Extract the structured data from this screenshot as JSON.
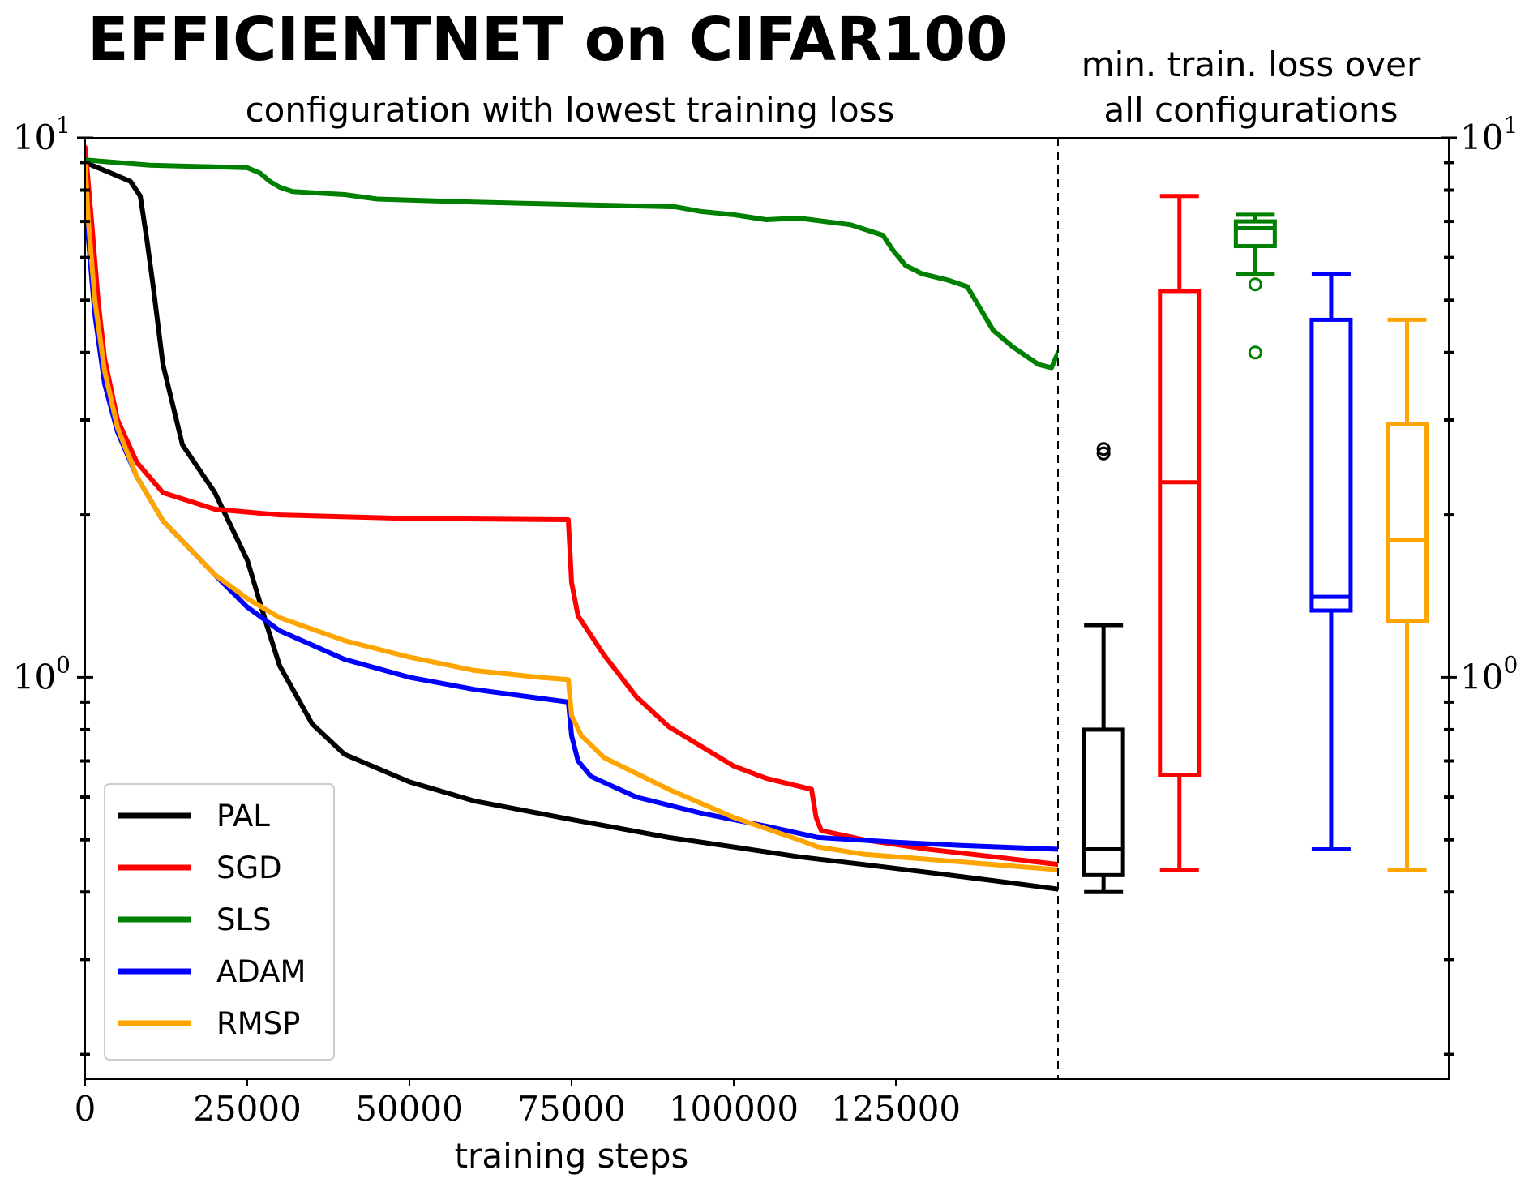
{
  "chart_data": [
    {
      "type": "line",
      "title": "EFFICIENTNET on CIFAR100",
      "subtitle": "configuration with lowest training loss",
      "xlabel": "training steps",
      "ylabel": "",
      "xlim": [
        0,
        150000
      ],
      "ylim": [
        0.18,
        10
      ],
      "yscale": "log",
      "xticks": [
        0,
        25000,
        50000,
        75000,
        100000,
        125000
      ],
      "xtick_labels": [
        "0",
        "25000",
        "50000",
        "75000",
        "100000",
        "125000"
      ],
      "ytick_labels": [
        {
          "value": 10,
          "base": "10",
          "exp": "1"
        },
        {
          "value": 1,
          "base": "10",
          "exp": "0"
        }
      ],
      "legend_position": "bottom-left",
      "series": [
        {
          "name": "PAL",
          "color": "#000000",
          "x": [
            0,
            3000,
            7000,
            8500,
            9500,
            10500,
            12000,
            15000,
            20000,
            25000,
            28000,
            30000,
            35000,
            40000,
            50000,
            60000,
            75000,
            90000,
            100000,
            110000,
            120000,
            130000,
            140000,
            150000
          ],
          "y": [
            9.0,
            8.7,
            8.3,
            7.8,
            6.5,
            5.3,
            3.8,
            2.7,
            2.2,
            1.65,
            1.25,
            1.05,
            0.82,
            0.72,
            0.64,
            0.59,
            0.545,
            0.505,
            0.485,
            0.465,
            0.45,
            0.435,
            0.42,
            0.405
          ]
        },
        {
          "name": "SGD",
          "color": "#ff0000",
          "x": [
            0,
            1000,
            2000,
            3000,
            5000,
            8000,
            12000,
            20000,
            30000,
            50000,
            74500,
            75000,
            76000,
            80000,
            85000,
            90000,
            100000,
            105000,
            112000,
            112700,
            113500,
            120000,
            130000,
            140000,
            150000
          ],
          "y": [
            9.6,
            7.0,
            5.0,
            3.9,
            3.0,
            2.5,
            2.2,
            2.05,
            2.0,
            1.97,
            1.96,
            1.5,
            1.3,
            1.1,
            0.92,
            0.81,
            0.685,
            0.65,
            0.62,
            0.55,
            0.52,
            0.5,
            0.48,
            0.465,
            0.45
          ]
        },
        {
          "name": "SLS",
          "color": "#008000",
          "x": [
            0,
            10000,
            25000,
            27000,
            28500,
            30000,
            32000,
            40000,
            45000,
            60000,
            80000,
            91000,
            95000,
            100000,
            105000,
            110000,
            114000,
            118000,
            123000,
            124500,
            126500,
            129000,
            133000,
            136000,
            140000,
            143000,
            147000,
            149000,
            150000
          ],
          "y": [
            9.1,
            8.9,
            8.8,
            8.6,
            8.3,
            8.1,
            7.95,
            7.85,
            7.7,
            7.6,
            7.5,
            7.45,
            7.3,
            7.2,
            7.05,
            7.1,
            7.0,
            6.9,
            6.6,
            6.2,
            5.8,
            5.6,
            5.45,
            5.3,
            4.4,
            4.1,
            3.8,
            3.75,
            4.0
          ]
        },
        {
          "name": "ADAM",
          "color": "#0000ff",
          "x": [
            0,
            500,
            1500,
            3000,
            5000,
            8000,
            12000,
            20000,
            25000,
            30000,
            40000,
            50000,
            60000,
            70000,
            74500,
            75000,
            76000,
            78000,
            85000,
            95000,
            105000,
            113000,
            125000,
            135000,
            150000
          ],
          "y": [
            9.0,
            6.5,
            4.7,
            3.5,
            2.85,
            2.35,
            1.95,
            1.55,
            1.35,
            1.22,
            1.08,
            1.0,
            0.95,
            0.915,
            0.9,
            0.78,
            0.7,
            0.655,
            0.6,
            0.56,
            0.53,
            0.505,
            0.495,
            0.488,
            0.48
          ]
        },
        {
          "name": "RMSP",
          "color": "#ffa500",
          "x": [
            0,
            500,
            1500,
            3000,
            5000,
            8000,
            12000,
            20000,
            25000,
            30000,
            40000,
            50000,
            60000,
            70000,
            74500,
            75000,
            76500,
            80000,
            90000,
            100000,
            110000,
            113000,
            120000,
            135000,
            150000
          ],
          "y": [
            9.0,
            7.0,
            5.0,
            3.7,
            2.9,
            2.35,
            1.95,
            1.55,
            1.4,
            1.29,
            1.17,
            1.09,
            1.03,
            1.0,
            0.99,
            0.85,
            0.78,
            0.71,
            0.62,
            0.55,
            0.5,
            0.485,
            0.47,
            0.455,
            0.44
          ]
        }
      ]
    },
    {
      "type": "box",
      "title": "min. train. loss over all configurations",
      "title_lines": [
        "min. train. loss over",
        "all configurations"
      ],
      "yscale": "log",
      "ylim": [
        0.18,
        10
      ],
      "ytick_labels": [
        {
          "value": 10,
          "base": "10",
          "exp": "1"
        },
        {
          "value": 1,
          "base": "10",
          "exp": "0"
        }
      ],
      "boxes": [
        {
          "name": "PAL",
          "color": "#000000",
          "whisker_low": 0.4,
          "q1": 0.43,
          "median": 0.48,
          "q3": 0.8,
          "whisker_high": 1.25,
          "outliers": [
            2.6,
            2.65
          ]
        },
        {
          "name": "SGD",
          "color": "#ff0000",
          "whisker_low": 0.44,
          "q1": 0.66,
          "median": 2.3,
          "q3": 5.2,
          "whisker_high": 7.8,
          "outliers": []
        },
        {
          "name": "SLS",
          "color": "#008000",
          "whisker_low": 5.6,
          "q1": 6.3,
          "median": 6.8,
          "q3": 7.0,
          "whisker_high": 7.2,
          "outliers": [
            5.35,
            4.0
          ]
        },
        {
          "name": "ADAM",
          "color": "#0000ff",
          "whisker_low": 0.48,
          "q1": 1.33,
          "median": 1.41,
          "q3": 4.6,
          "whisker_high": 5.6,
          "outliers": []
        },
        {
          "name": "RMSP",
          "color": "#ffa500",
          "whisker_low": 0.44,
          "q1": 1.27,
          "median": 1.8,
          "q3": 2.95,
          "whisker_high": 4.6,
          "outliers": []
        }
      ]
    }
  ]
}
